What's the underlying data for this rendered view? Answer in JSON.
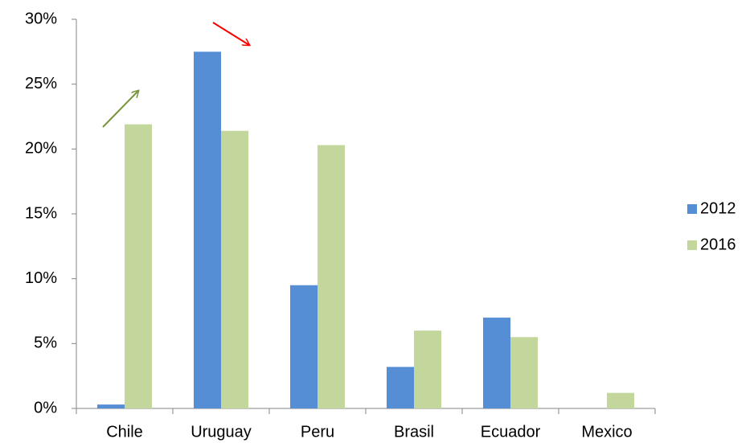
{
  "chart_data": {
    "type": "bar",
    "categories": [
      "Chile",
      "Uruguay",
      "Peru",
      "Brasil",
      "Ecuador",
      "Mexico"
    ],
    "series": [
      {
        "name": "2012",
        "color": "#558ed5",
        "values": [
          0.3,
          27.5,
          9.5,
          3.2,
          7.0,
          null
        ]
      },
      {
        "name": "2016",
        "color": "#c3d69b",
        "values": [
          21.9,
          21.4,
          20.3,
          6.0,
          5.5,
          1.2
        ]
      }
    ],
    "ylim": [
      0,
      30
    ],
    "yticks": [
      {
        "value": 0,
        "label": "0%"
      },
      {
        "value": 5,
        "label": "5%"
      },
      {
        "value": 10,
        "label": "10%"
      },
      {
        "value": 15,
        "label": "15%"
      },
      {
        "value": 20,
        "label": "20%"
      },
      {
        "value": 25,
        "label": "25%"
      },
      {
        "value": 30,
        "label": "30%"
      }
    ],
    "grid": false,
    "legend": "right"
  }
}
